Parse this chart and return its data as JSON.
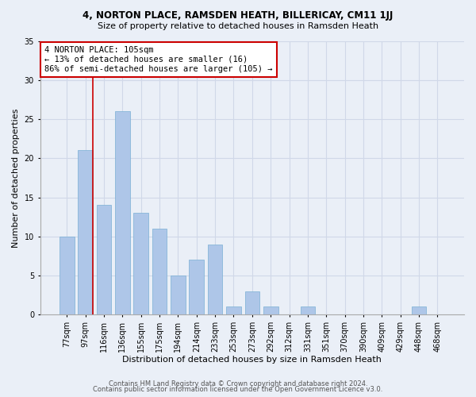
{
  "title1": "4, NORTON PLACE, RAMSDEN HEATH, BILLERICAY, CM11 1JJ",
  "title2": "Size of property relative to detached houses in Ramsden Heath",
  "xlabel": "Distribution of detached houses by size in Ramsden Heath",
  "ylabel": "Number of detached properties",
  "categories": [
    "77sqm",
    "97sqm",
    "116sqm",
    "136sqm",
    "155sqm",
    "175sqm",
    "194sqm",
    "214sqm",
    "233sqm",
    "253sqm",
    "273sqm",
    "292sqm",
    "312sqm",
    "331sqm",
    "351sqm",
    "370sqm",
    "390sqm",
    "409sqm",
    "429sqm",
    "448sqm",
    "468sqm"
  ],
  "values": [
    10,
    21,
    14,
    26,
    13,
    11,
    5,
    7,
    9,
    1,
    3,
    1,
    0,
    1,
    0,
    0,
    0,
    0,
    0,
    1,
    0
  ],
  "bar_color": "#aec6e8",
  "bar_edge_color": "#7aafd4",
  "vline_x_index": 1,
  "vline_color": "#cc0000",
  "annotation_line1": "4 NORTON PLACE: 105sqm",
  "annotation_line2": "← 13% of detached houses are smaller (16)",
  "annotation_line3": "86% of semi-detached houses are larger (105) →",
  "annotation_box_color": "#ffffff",
  "annotation_box_edge_color": "#cc0000",
  "annotation_fontsize": 7.5,
  "ylim": [
    0,
    35
  ],
  "yticks": [
    0,
    5,
    10,
    15,
    20,
    25,
    30,
    35
  ],
  "grid_color": "#d0d8e8",
  "background_color": "#eaeff7",
  "footer1": "Contains HM Land Registry data © Crown copyright and database right 2024.",
  "footer2": "Contains public sector information licensed under the Open Government Licence v3.0.",
  "title1_fontsize": 8.5,
  "title2_fontsize": 8,
  "xlabel_fontsize": 8,
  "ylabel_fontsize": 8,
  "tick_fontsize": 7,
  "footer_fontsize": 6
}
